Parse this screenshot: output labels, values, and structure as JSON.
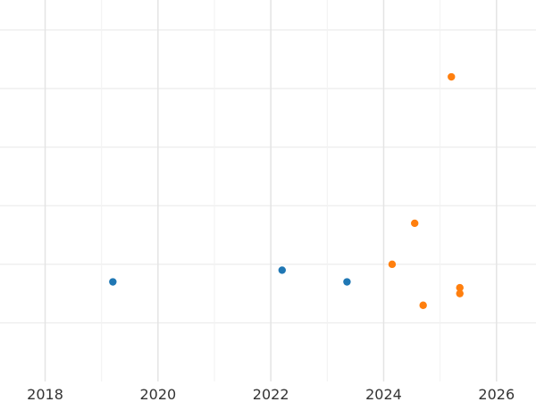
{
  "chart_data": {
    "type": "scatter",
    "title": "",
    "xlabel": "",
    "ylabel": "",
    "grid": true,
    "legend": "none",
    "x_ticks": [
      "2018",
      "2020",
      "2022",
      "2024",
      "2026"
    ],
    "x_tick_values": [
      2018,
      2020,
      2022,
      2024,
      2026
    ],
    "xlim": [
      2017.2,
      2026.7
    ],
    "ylim": [
      0,
      7
    ],
    "y_grid_values": [
      1,
      2,
      3,
      4,
      5,
      6
    ],
    "series": [
      {
        "color": "#1f77b4",
        "points": [
          {
            "x": 2019.2,
            "y": 1.7
          },
          {
            "x": 2022.2,
            "y": 1.9
          },
          {
            "x": 2023.35,
            "y": 1.7
          }
        ]
      },
      {
        "color": "#ff7f0e",
        "points": [
          {
            "x": 2024.15,
            "y": 2.0
          },
          {
            "x": 2024.55,
            "y": 2.7
          },
          {
            "x": 2024.7,
            "y": 1.3
          },
          {
            "x": 2025.2,
            "y": 5.2
          },
          {
            "x": 2025.35,
            "y": 1.6
          },
          {
            "x": 2025.35,
            "y": 1.5
          }
        ]
      }
    ]
  }
}
